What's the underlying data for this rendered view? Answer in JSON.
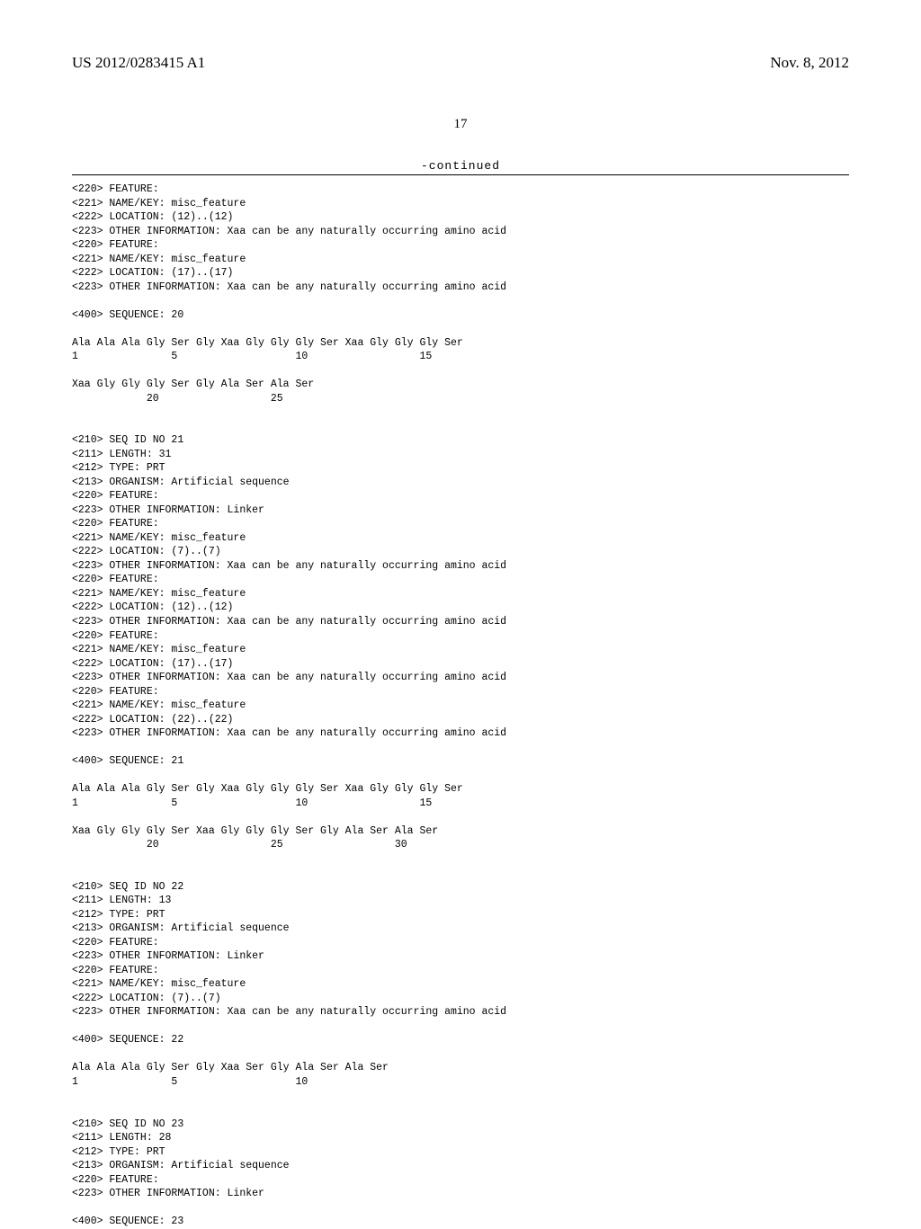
{
  "header": {
    "pub_number": "US 2012/0283415 A1",
    "pub_date": "Nov. 8, 2012"
  },
  "page_number": "17",
  "continued_label": "-continued",
  "sequence_text": "<220> FEATURE:\n<221> NAME/KEY: misc_feature\n<222> LOCATION: (12)..(12)\n<223> OTHER INFORMATION: Xaa can be any naturally occurring amino acid\n<220> FEATURE:\n<221> NAME/KEY: misc_feature\n<222> LOCATION: (17)..(17)\n<223> OTHER INFORMATION: Xaa can be any naturally occurring amino acid\n\n<400> SEQUENCE: 20\n\nAla Ala Ala Gly Ser Gly Xaa Gly Gly Gly Ser Xaa Gly Gly Gly Ser\n1               5                   10                  15\n\nXaa Gly Gly Gly Ser Gly Ala Ser Ala Ser\n            20                  25\n\n\n<210> SEQ ID NO 21\n<211> LENGTH: 31\n<212> TYPE: PRT\n<213> ORGANISM: Artificial sequence\n<220> FEATURE:\n<223> OTHER INFORMATION: Linker\n<220> FEATURE:\n<221> NAME/KEY: misc_feature\n<222> LOCATION: (7)..(7)\n<223> OTHER INFORMATION: Xaa can be any naturally occurring amino acid\n<220> FEATURE:\n<221> NAME/KEY: misc_feature\n<222> LOCATION: (12)..(12)\n<223> OTHER INFORMATION: Xaa can be any naturally occurring amino acid\n<220> FEATURE:\n<221> NAME/KEY: misc_feature\n<222> LOCATION: (17)..(17)\n<223> OTHER INFORMATION: Xaa can be any naturally occurring amino acid\n<220> FEATURE:\n<221> NAME/KEY: misc_feature\n<222> LOCATION: (22)..(22)\n<223> OTHER INFORMATION: Xaa can be any naturally occurring amino acid\n\n<400> SEQUENCE: 21\n\nAla Ala Ala Gly Ser Gly Xaa Gly Gly Gly Ser Xaa Gly Gly Gly Ser\n1               5                   10                  15\n\nXaa Gly Gly Gly Ser Xaa Gly Gly Gly Ser Gly Ala Ser Ala Ser\n            20                  25                  30\n\n\n<210> SEQ ID NO 22\n<211> LENGTH: 13\n<212> TYPE: PRT\n<213> ORGANISM: Artificial sequence\n<220> FEATURE:\n<223> OTHER INFORMATION: Linker\n<220> FEATURE:\n<221> NAME/KEY: misc_feature\n<222> LOCATION: (7)..(7)\n<223> OTHER INFORMATION: Xaa can be any naturally occurring amino acid\n\n<400> SEQUENCE: 22\n\nAla Ala Ala Gly Ser Gly Xaa Ser Gly Ala Ser Ala Ser\n1               5                   10\n\n\n<210> SEQ ID NO 23\n<211> LENGTH: 28\n<212> TYPE: PRT\n<213> ORGANISM: Artificial sequence\n<220> FEATURE:\n<223> OTHER INFORMATION: Linker\n\n<400> SEQUENCE: 23"
}
